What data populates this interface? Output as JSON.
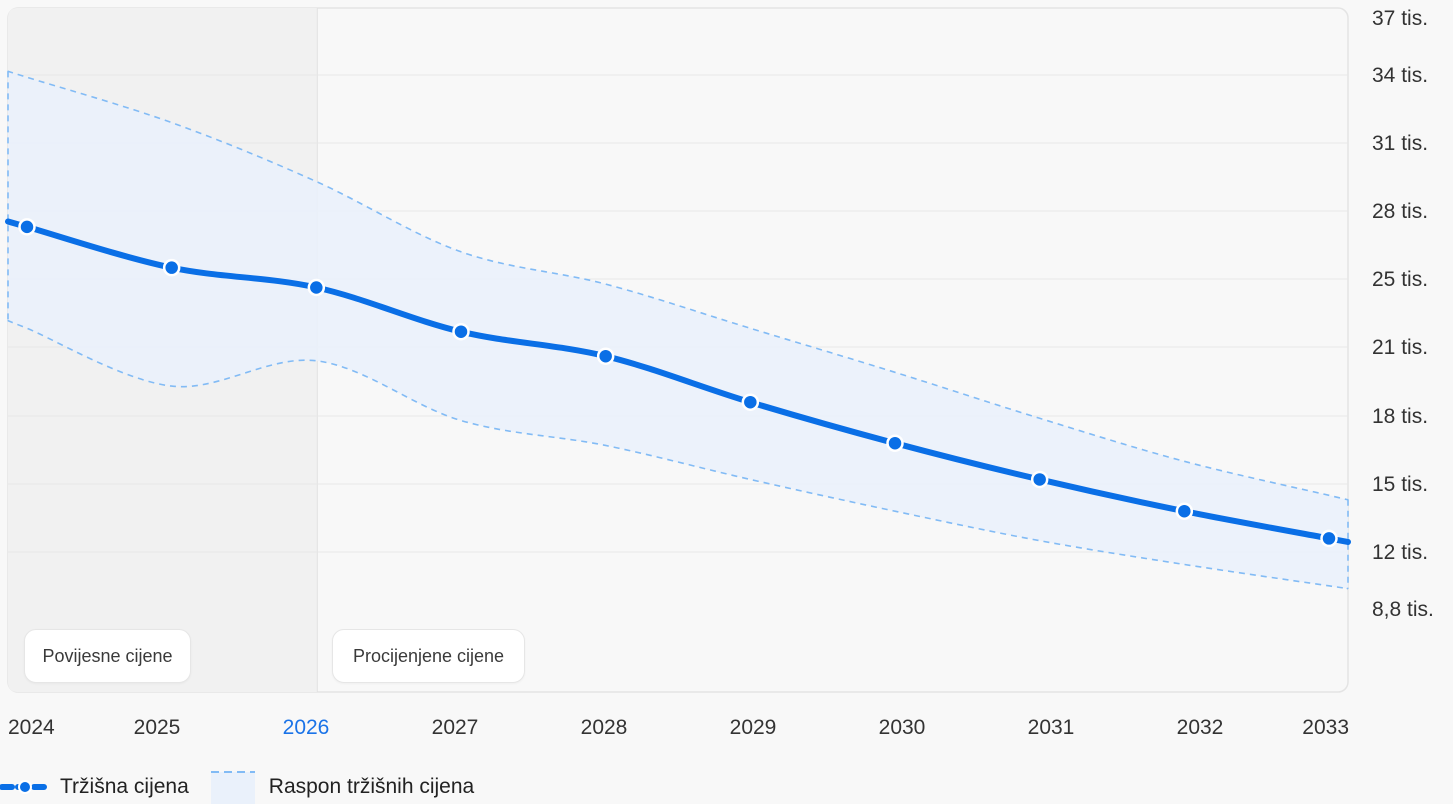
{
  "chart_data": {
    "type": "line",
    "x": [
      "2024",
      "2025",
      "2026",
      "2027",
      "2028",
      "2029",
      "2030",
      "2031",
      "2032",
      "2033"
    ],
    "current_x": "2026",
    "y_ticks": [
      {
        "value": 37000,
        "label": "37 tis."
      },
      {
        "value": 34000,
        "label": "34 tis."
      },
      {
        "value": 31000,
        "label": "31 tis."
      },
      {
        "value": 28000,
        "label": "28 tis."
      },
      {
        "value": 25000,
        "label": "25 tis."
      },
      {
        "value": 21000,
        "label": "21 tis."
      },
      {
        "value": 18000,
        "label": "18 tis."
      },
      {
        "value": 15000,
        "label": "15 tis."
      },
      {
        "value": 12000,
        "label": "12 tis."
      },
      {
        "value": 8800,
        "label": "8,8 tis."
      }
    ],
    "series": [
      {
        "name": "Tržišna cijena",
        "values": [
          27300,
          25500,
          24500,
          21900,
          20600,
          18600,
          16800,
          15200,
          13800,
          12600
        ]
      }
    ],
    "range": {
      "name": "Raspon tržišnih cijena",
      "upper": [
        33900,
        31900,
        29300,
        26200,
        24700,
        22100,
        19900,
        17900,
        16000,
        14500
      ],
      "lower": [
        22100,
        19300,
        20400,
        17800,
        16700,
        15200,
        13800,
        12500,
        11300,
        10100
      ]
    },
    "regions": [
      {
        "label": "Povijesne cijene"
      },
      {
        "label": "Procijenjene cijene"
      }
    ],
    "grid": true,
    "legend_position": "bottom-left",
    "colors": {
      "line": "#0a6fe6",
      "range_fill": "#eaf1fb",
      "range_stroke": "#82bbf5",
      "history_bg": "#f1f1f1",
      "plot_bg": "#f8f8f8",
      "current_year": "#1a73e8"
    }
  },
  "legend": {
    "line_label": "Tržišna cijena",
    "range_label": "Raspon tržišnih cijena"
  }
}
